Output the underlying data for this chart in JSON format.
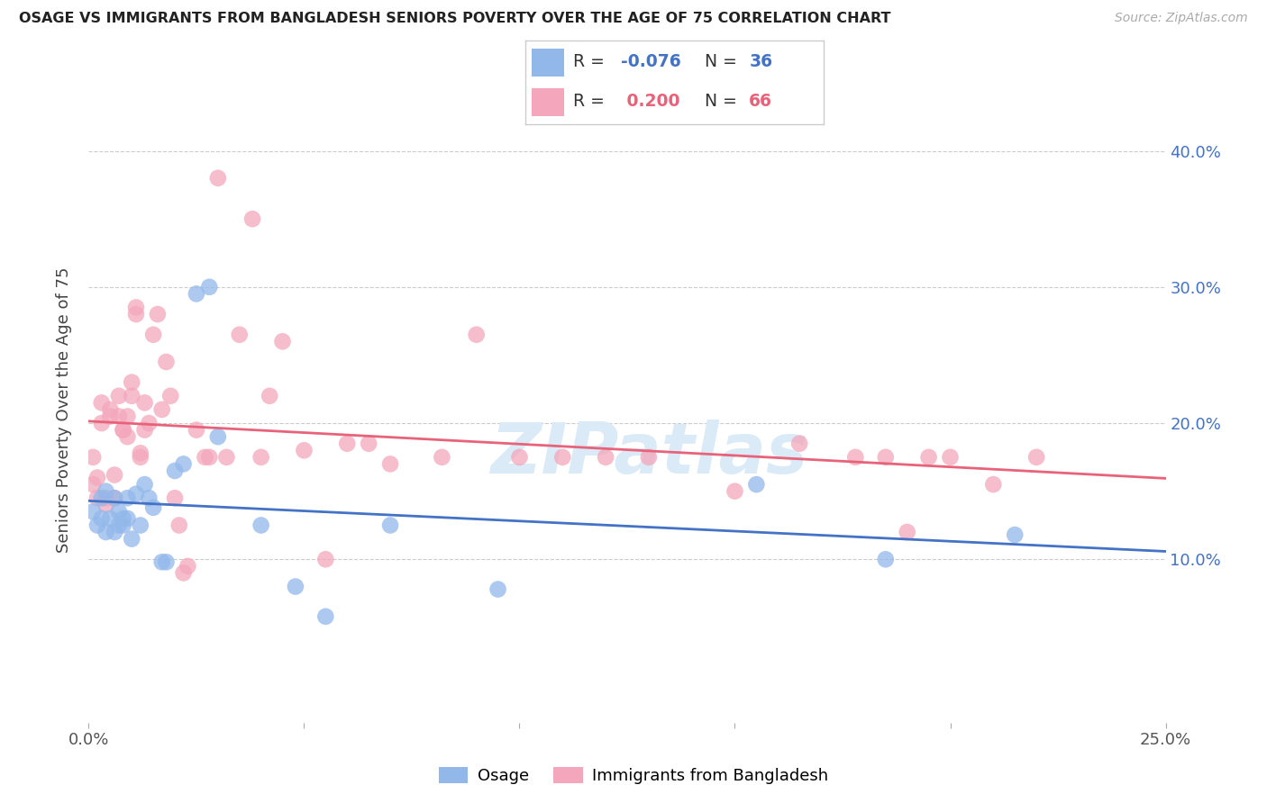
{
  "title": "OSAGE VS IMMIGRANTS FROM BANGLADESH SENIORS POVERTY OVER THE AGE OF 75 CORRELATION CHART",
  "source": "Source: ZipAtlas.com",
  "ylabel": "Seniors Poverty Over the Age of 75",
  "xlim": [
    0.0,
    0.25
  ],
  "ylim": [
    -0.02,
    0.44
  ],
  "x_ticks": [
    0.0,
    0.05,
    0.1,
    0.15,
    0.2,
    0.25
  ],
  "y_ticks": [
    0.1,
    0.2,
    0.3,
    0.4
  ],
  "y_tick_labels": [
    "10.0%",
    "20.0%",
    "30.0%",
    "40.0%"
  ],
  "R_osage": -0.076,
  "N_osage": 36,
  "R_bangladesh": 0.2,
  "N_bangladesh": 66,
  "color_osage": "#92b8ea",
  "color_bangladesh": "#f4a7bc",
  "line_color_osage": "#4472c4",
  "line_color_bangladesh": "#e8637a",
  "watermark": "ZIPatlas",
  "osage_x": [
    0.001,
    0.002,
    0.003,
    0.003,
    0.004,
    0.004,
    0.005,
    0.006,
    0.006,
    0.007,
    0.007,
    0.008,
    0.008,
    0.009,
    0.009,
    0.01,
    0.011,
    0.012,
    0.013,
    0.014,
    0.015,
    0.017,
    0.018,
    0.02,
    0.022,
    0.025,
    0.028,
    0.03,
    0.04,
    0.048,
    0.055,
    0.07,
    0.095,
    0.155,
    0.185,
    0.215
  ],
  "osage_y": [
    0.135,
    0.125,
    0.13,
    0.145,
    0.12,
    0.15,
    0.13,
    0.12,
    0.145,
    0.125,
    0.135,
    0.125,
    0.13,
    0.13,
    0.145,
    0.115,
    0.148,
    0.125,
    0.155,
    0.145,
    0.138,
    0.098,
    0.098,
    0.165,
    0.17,
    0.295,
    0.3,
    0.19,
    0.125,
    0.08,
    0.058,
    0.125,
    0.078,
    0.155,
    0.1,
    0.118
  ],
  "bangladesh_x": [
    0.001,
    0.001,
    0.002,
    0.002,
    0.003,
    0.003,
    0.004,
    0.004,
    0.005,
    0.005,
    0.006,
    0.006,
    0.007,
    0.007,
    0.008,
    0.008,
    0.009,
    0.009,
    0.01,
    0.01,
    0.011,
    0.011,
    0.012,
    0.012,
    0.013,
    0.013,
    0.014,
    0.015,
    0.016,
    0.017,
    0.018,
    0.019,
    0.02,
    0.021,
    0.022,
    0.023,
    0.025,
    0.027,
    0.028,
    0.03,
    0.032,
    0.035,
    0.038,
    0.04,
    0.042,
    0.045,
    0.05,
    0.055,
    0.06,
    0.065,
    0.07,
    0.082,
    0.09,
    0.1,
    0.11,
    0.12,
    0.13,
    0.15,
    0.165,
    0.178,
    0.185,
    0.19,
    0.195,
    0.2,
    0.21,
    0.22
  ],
  "bangladesh_y": [
    0.155,
    0.175,
    0.145,
    0.16,
    0.2,
    0.215,
    0.14,
    0.145,
    0.205,
    0.21,
    0.145,
    0.162,
    0.205,
    0.22,
    0.195,
    0.195,
    0.19,
    0.205,
    0.22,
    0.23,
    0.28,
    0.285,
    0.178,
    0.175,
    0.195,
    0.215,
    0.2,
    0.265,
    0.28,
    0.21,
    0.245,
    0.22,
    0.145,
    0.125,
    0.09,
    0.095,
    0.195,
    0.175,
    0.175,
    0.38,
    0.175,
    0.265,
    0.35,
    0.175,
    0.22,
    0.26,
    0.18,
    0.1,
    0.185,
    0.185,
    0.17,
    0.175,
    0.265,
    0.175,
    0.175,
    0.175,
    0.175,
    0.15,
    0.185,
    0.175,
    0.175,
    0.12,
    0.175,
    0.175,
    0.155,
    0.175
  ]
}
